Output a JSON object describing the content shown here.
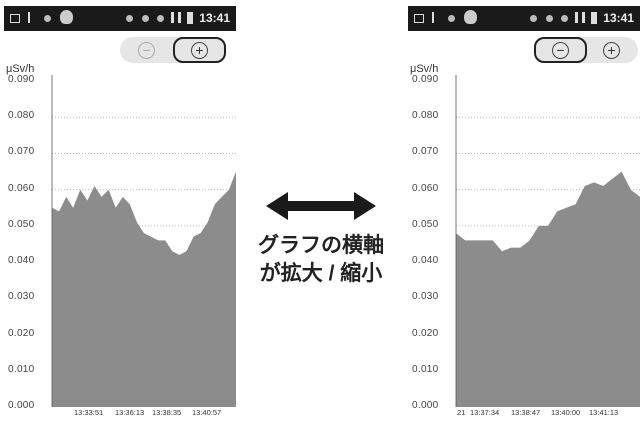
{
  "left_screen": {
    "status_time": "13:41",
    "unit_label": "μSv/h",
    "y_ticks": [
      "0.090",
      "0.080",
      "0.070",
      "0.060",
      "0.050",
      "0.040",
      "0.030",
      "0.020",
      "0.010",
      "0.000"
    ],
    "x_ticks": [
      "13:33:51",
      "13:36:13",
      "13:38:35",
      "13:40:57"
    ],
    "zoom_out_symbol": "−",
    "zoom_in_symbol": "+",
    "highlighted_zoom": "zoom-in"
  },
  "right_screen": {
    "status_time": "13:41",
    "unit_label": "μSv/h",
    "y_ticks": [
      "0.090",
      "0.080",
      "0.070",
      "0.060",
      "0.050",
      "0.040",
      "0.030",
      "0.020",
      "0.010",
      "0.000"
    ],
    "x_ticks": [
      "21",
      "13:37:34",
      "13:38:47",
      "13:40:00",
      "13:41:13"
    ],
    "zoom_out_symbol": "−",
    "zoom_in_symbol": "+",
    "highlighted_zoom": "zoom-out"
  },
  "caption": {
    "line1": "グラフの横軸",
    "line2": "が拡大 / 縮小"
  },
  "colors": {
    "area_fill": "#8c8c8c",
    "status_bar": "#1a1a1a",
    "zoom_bar": "#e6e6e6"
  },
  "chart_data": [
    {
      "type": "area",
      "title": "",
      "ylabel": "μSv/h",
      "ylim": [
        0,
        0.09
      ],
      "x_tick_labels": [
        "13:33:51",
        "13:36:13",
        "13:38:35",
        "13:40:57"
      ],
      "values": [
        0.055,
        0.054,
        0.058,
        0.055,
        0.06,
        0.057,
        0.061,
        0.058,
        0.06,
        0.055,
        0.058,
        0.056,
        0.051,
        0.048,
        0.047,
        0.046,
        0.046,
        0.043,
        0.042,
        0.043,
        0.047,
        0.048,
        0.051,
        0.056,
        0.058,
        0.06,
        0.065
      ]
    },
    {
      "type": "area",
      "title": "",
      "ylabel": "μSv/h",
      "ylim": [
        0,
        0.09
      ],
      "x_tick_labels": [
        "21",
        "13:37:34",
        "13:38:47",
        "13:40:00",
        "13:41:13"
      ],
      "values": [
        0.048,
        0.046,
        0.046,
        0.046,
        0.046,
        0.043,
        0.044,
        0.044,
        0.046,
        0.05,
        0.05,
        0.054,
        0.055,
        0.056,
        0.061,
        0.062,
        0.061,
        0.063,
        0.065,
        0.06,
        0.058
      ]
    }
  ]
}
